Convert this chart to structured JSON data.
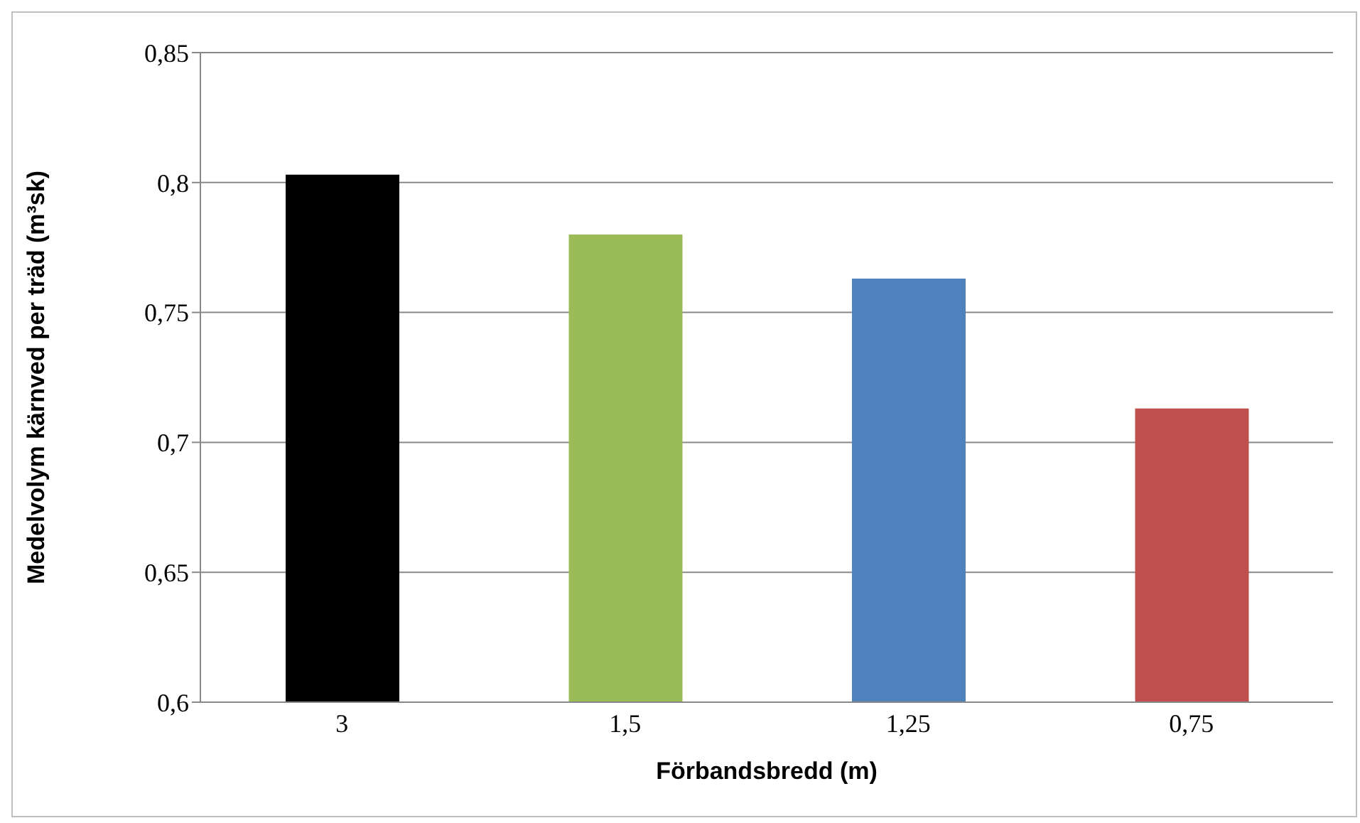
{
  "chart_data": {
    "type": "bar",
    "xlabel": "Förbandsbredd (m)",
    "ylabel": "Medelvolym kärnved per träd (m³sk)",
    "categories": [
      "3",
      "1,5",
      "1,25",
      "0,75"
    ],
    "values": [
      0.803,
      0.78,
      0.763,
      0.713
    ],
    "colors": [
      "#000000",
      "#9bbb59",
      "#4f81bd",
      "#c0504d"
    ],
    "ylim": [
      0.6,
      0.85
    ],
    "yticks": [
      {
        "value": 0.6,
        "label": "0,6"
      },
      {
        "value": 0.65,
        "label": "0,65"
      },
      {
        "value": 0.7,
        "label": "0,7"
      },
      {
        "value": 0.75,
        "label": "0,75"
      },
      {
        "value": 0.8,
        "label": "0,8"
      },
      {
        "value": 0.85,
        "label": "0,85"
      }
    ],
    "grid": "y",
    "legend": false
  }
}
